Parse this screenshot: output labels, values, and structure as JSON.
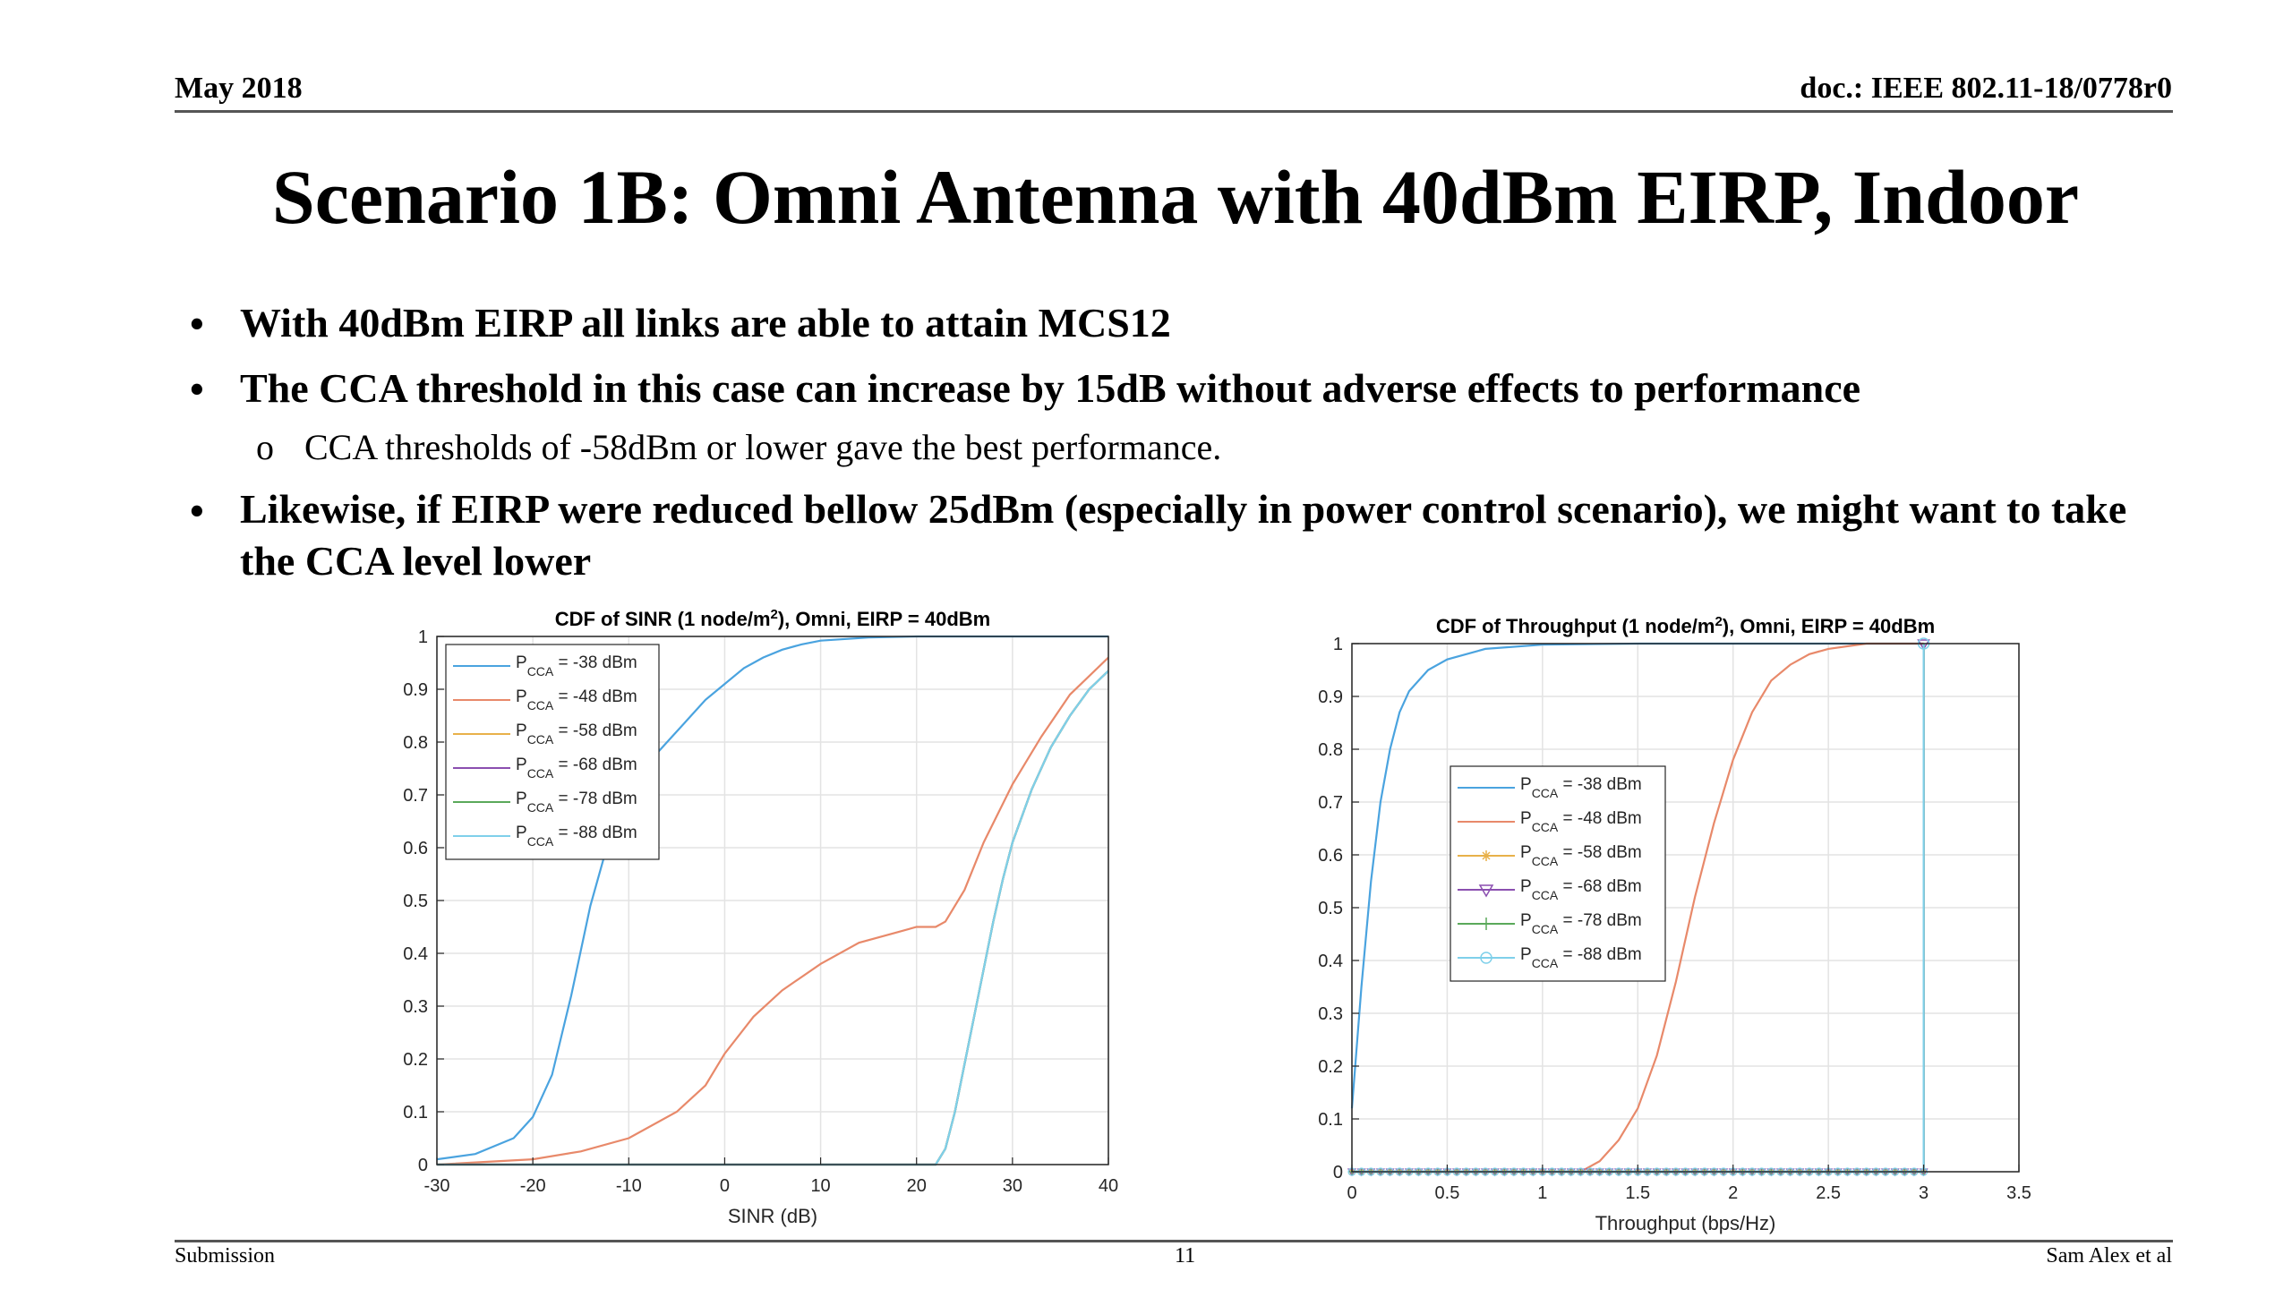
{
  "header": {
    "date": "May 2018",
    "doc": "doc.: IEEE 802.11-18/0778r0"
  },
  "title": "Scenario 1B: Omni Antenna with 40dBm EIRP, Indoor",
  "bullets": [
    {
      "text": "With 40dBm EIRP all links are able to attain MCS12"
    },
    {
      "text": "The CCA threshold in this case can increase by 15dB without adverse effects to performance",
      "sub": "CCA thresholds of -58dBm or lower gave the best performance."
    },
    {
      "text": "Likewise, if EIRP were reduced bellow 25dBm (especially in power control scenario), we might want to take the CCA level lower"
    }
  ],
  "footer": {
    "left": "Submission",
    "page": "11",
    "right": "Sam Alex et al"
  },
  "symbols": {
    "bullet": "•",
    "sub_bullet": "o"
  },
  "chart_data": [
    {
      "type": "line",
      "title_prefix": "CDF of SINR (1 node/m",
      "title_sup": "2",
      "title_suffix": "), Omni, EIRP = 40dBm",
      "xlabel": "SINR (dB)",
      "ylabel": "",
      "xlim": [
        -30,
        40
      ],
      "ylim": [
        0,
        1
      ],
      "xticks": [
        -30,
        -20,
        -10,
        0,
        10,
        20,
        30,
        40
      ],
      "yticks": [
        0,
        0.1,
        0.2,
        0.3,
        0.4,
        0.5,
        0.6,
        0.7,
        0.8,
        0.9,
        1
      ],
      "grid": true,
      "legend_position": "top-left",
      "series": [
        {
          "name_main": "P",
          "name_sub": "CCA",
          "name_rest": " = -38 dBm",
          "color": "#4aa3df",
          "x": [
            -30,
            -26,
            -22,
            -20,
            -18,
            -16,
            -14,
            -12,
            -10,
            -8,
            -6,
            -4,
            -2,
            0,
            2,
            4,
            6,
            8,
            10,
            15,
            20,
            25,
            30,
            40
          ],
          "y": [
            0.01,
            0.02,
            0.05,
            0.09,
            0.17,
            0.32,
            0.49,
            0.62,
            0.71,
            0.76,
            0.8,
            0.84,
            0.88,
            0.91,
            0.94,
            0.96,
            0.975,
            0.985,
            0.992,
            0.998,
            1,
            1,
            1,
            1
          ]
        },
        {
          "name_main": "P",
          "name_sub": "CCA",
          "name_rest": " = -48 dBm",
          "color": "#e8896a",
          "x": [
            -30,
            -20,
            -15,
            -10,
            -5,
            -2,
            0,
            3,
            6,
            10,
            14,
            18,
            20,
            22,
            23,
            25,
            27,
            30,
            33,
            36,
            40
          ],
          "y": [
            0,
            0.01,
            0.025,
            0.05,
            0.1,
            0.15,
            0.21,
            0.28,
            0.33,
            0.38,
            0.42,
            0.44,
            0.45,
            0.45,
            0.46,
            0.52,
            0.61,
            0.72,
            0.81,
            0.89,
            0.96
          ]
        },
        {
          "name_main": "P",
          "name_sub": "CCA",
          "name_rest": " = -58 dBm",
          "color": "#e8b14a",
          "x": [
            -30,
            22,
            23,
            24,
            25,
            26,
            27,
            28,
            29,
            30,
            32,
            34,
            36,
            38,
            40
          ],
          "y": [
            0,
            0,
            0.03,
            0.1,
            0.19,
            0.28,
            0.37,
            0.46,
            0.54,
            0.61,
            0.71,
            0.79,
            0.85,
            0.9,
            0.935
          ]
        },
        {
          "name_main": "P",
          "name_sub": "CCA",
          "name_rest": " = -68 dBm",
          "color": "#8b4fb0",
          "x": [
            -30,
            22,
            23,
            24,
            25,
            26,
            27,
            28,
            29,
            30,
            32,
            34,
            36,
            38,
            40
          ],
          "y": [
            0,
            0,
            0.03,
            0.1,
            0.19,
            0.28,
            0.37,
            0.46,
            0.54,
            0.61,
            0.71,
            0.79,
            0.85,
            0.9,
            0.935
          ]
        },
        {
          "name_main": "P",
          "name_sub": "CCA",
          "name_rest": " = -78 dBm",
          "color": "#5aa95a",
          "x": [
            -30,
            22,
            23,
            24,
            25,
            26,
            27,
            28,
            29,
            30,
            32,
            34,
            36,
            38,
            40
          ],
          "y": [
            0,
            0,
            0.03,
            0.1,
            0.19,
            0.28,
            0.37,
            0.46,
            0.54,
            0.61,
            0.71,
            0.79,
            0.85,
            0.9,
            0.935
          ]
        },
        {
          "name_main": "P",
          "name_sub": "CCA",
          "name_rest": " = -88 dBm",
          "color": "#7fd0ea",
          "x": [
            -30,
            22,
            23,
            24,
            25,
            26,
            27,
            28,
            29,
            30,
            32,
            34,
            36,
            38,
            40
          ],
          "y": [
            0,
            0,
            0.03,
            0.1,
            0.19,
            0.28,
            0.37,
            0.46,
            0.54,
            0.61,
            0.71,
            0.79,
            0.85,
            0.9,
            0.935
          ]
        }
      ]
    },
    {
      "type": "line",
      "title_prefix": "CDF of Throughput (1 node/m",
      "title_sup": "2",
      "title_suffix": "), Omni, EIRP = 40dBm",
      "xlabel": "Throughput (bps/Hz)",
      "ylabel": "",
      "xlim": [
        0,
        3.5
      ],
      "ylim": [
        0,
        1
      ],
      "xticks": [
        0,
        0.5,
        1,
        1.5,
        2,
        2.5,
        3,
        3.5
      ],
      "yticks": [
        0,
        0.1,
        0.2,
        0.3,
        0.4,
        0.5,
        0.6,
        0.7,
        0.8,
        0.9,
        1
      ],
      "grid": true,
      "legend_position": "center-left",
      "series": [
        {
          "name_main": "P",
          "name_sub": "CCA",
          "name_rest": " = -38 dBm",
          "color": "#4aa3df",
          "marker": "none",
          "x": [
            0,
            0.05,
            0.1,
            0.15,
            0.2,
            0.25,
            0.3,
            0.4,
            0.5,
            0.7,
            1.0,
            1.5,
            3.0
          ],
          "y": [
            0.12,
            0.35,
            0.55,
            0.7,
            0.8,
            0.87,
            0.91,
            0.95,
            0.97,
            0.99,
            0.998,
            1,
            1
          ]
        },
        {
          "name_main": "P",
          "name_sub": "CCA",
          "name_rest": " = -48 dBm",
          "color": "#e8896a",
          "marker": "none",
          "x": [
            0,
            1.2,
            1.3,
            1.4,
            1.5,
            1.6,
            1.7,
            1.8,
            1.9,
            2.0,
            2.1,
            2.2,
            2.3,
            2.4,
            2.5,
            2.7,
            3.0
          ],
          "y": [
            0,
            0,
            0.02,
            0.06,
            0.12,
            0.22,
            0.36,
            0.52,
            0.66,
            0.78,
            0.87,
            0.93,
            0.96,
            0.98,
            0.99,
            1,
            1
          ]
        },
        {
          "name_main": "P",
          "name_sub": "CCA",
          "name_rest": " = -58 dBm",
          "color": "#e8b14a",
          "marker": "star",
          "x": [
            0,
            2.99,
            3.0,
            3.0
          ],
          "y": [
            0,
            0,
            0,
            1
          ]
        },
        {
          "name_main": "P",
          "name_sub": "CCA",
          "name_rest": " = -68 dBm",
          "color": "#8b4fb0",
          "marker": "triangle",
          "x": [
            0,
            2.99,
            3.0,
            3.0
          ],
          "y": [
            0,
            0,
            0,
            1
          ]
        },
        {
          "name_main": "P",
          "name_sub": "CCA",
          "name_rest": " = -78 dBm",
          "color": "#5aa95a",
          "marker": "plus",
          "x": [
            0,
            2.99,
            3.0,
            3.0
          ],
          "y": [
            0,
            0,
            0,
            1
          ]
        },
        {
          "name_main": "P",
          "name_sub": "CCA",
          "name_rest": " = -88 dBm",
          "color": "#7fd0ea",
          "marker": "circle",
          "x": [
            0,
            2.99,
            3.0,
            3.0
          ],
          "y": [
            0,
            0,
            0,
            1
          ]
        }
      ]
    }
  ]
}
